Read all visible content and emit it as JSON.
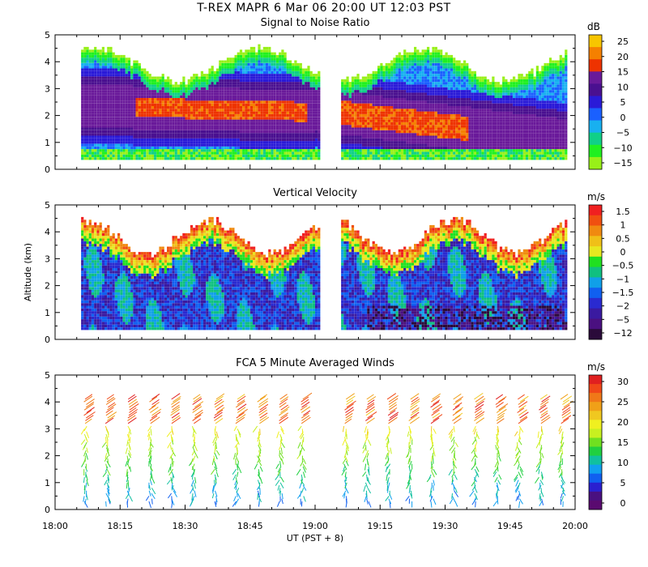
{
  "header": {
    "title": "T-REX   MAPR   6 Mar 06   20:00 UT   12:03   PST"
  },
  "x_axis": {
    "label": "UT  (PST + 8)",
    "ticks": [
      "18:00",
      "18:15",
      "18:30",
      "18:45",
      "19:00",
      "19:15",
      "19:30",
      "19:45",
      "20:00"
    ]
  },
  "y_axis": {
    "label": "Altitude (km)",
    "ticks": [
      "0",
      "1",
      "2",
      "3",
      "4",
      "5"
    ]
  },
  "chart_data": [
    {
      "type": "heatmap",
      "title": "Signal to Noise Ratio",
      "units": "dB",
      "colorbar_ticks": [
        "25",
        "20",
        "15",
        "10",
        "5",
        "0",
        "−5",
        "−10",
        "−15"
      ],
      "colorbar_colors": [
        "#f7c500",
        "#f58000",
        "#ee3300",
        "#6a1a9a",
        "#4a1090",
        "#2a1ad8",
        "#1a60ff",
        "#18b0f0",
        "#10d088",
        "#20f020",
        "#98f018"
      ],
      "xlim_minutes_after_1800": [
        0,
        120
      ],
      "ylim_km": [
        0,
        5
      ],
      "data_gap_minutes": [
        61,
        66
      ]
    },
    {
      "type": "heatmap",
      "title": "Vertical Velocity",
      "units": "m/s",
      "colorbar_ticks": [
        "1.5",
        "1",
        "0.5",
        "0",
        "−0.5",
        "−1",
        "−1.5",
        "−2",
        "−5",
        "−12"
      ],
      "colorbar_colors": [
        "#f02020",
        "#f05010",
        "#f08a10",
        "#f0c018",
        "#e8e820",
        "#20e020",
        "#10c080",
        "#10a0e8",
        "#1060f0",
        "#2a2ad0",
        "#3a1aa0",
        "#4a1080",
        "#2a0a3a"
      ],
      "xlim_minutes_after_1800": [
        0,
        120
      ],
      "ylim_km": [
        0,
        5
      ],
      "data_gap_minutes": [
        61,
        66
      ]
    },
    {
      "type": "wind-barbs",
      "title": "FCA 5 Minute Averaged Winds",
      "units": "m/s",
      "colorbar_ticks": [
        "30",
        "25",
        "20",
        "15",
        "10",
        "5",
        "0"
      ],
      "colorbar_colors": [
        "#e02020",
        "#f04818",
        "#f07818",
        "#f0a018",
        "#f0c820",
        "#f0f020",
        "#c8f020",
        "#70e020",
        "#20d040",
        "#10c0a0",
        "#10a0f0",
        "#1060f0",
        "#2a20d0",
        "#4a1080",
        "#5a0a70"
      ],
      "xlim_minutes_after_1800": [
        0,
        120
      ],
      "ylim_km": [
        0,
        5
      ],
      "barb_times_minutes": [
        7,
        12,
        17,
        22,
        27,
        32,
        37,
        42,
        47,
        52,
        57,
        67,
        72,
        77,
        82,
        87,
        92,
        97,
        102,
        107,
        112,
        117
      ]
    }
  ]
}
